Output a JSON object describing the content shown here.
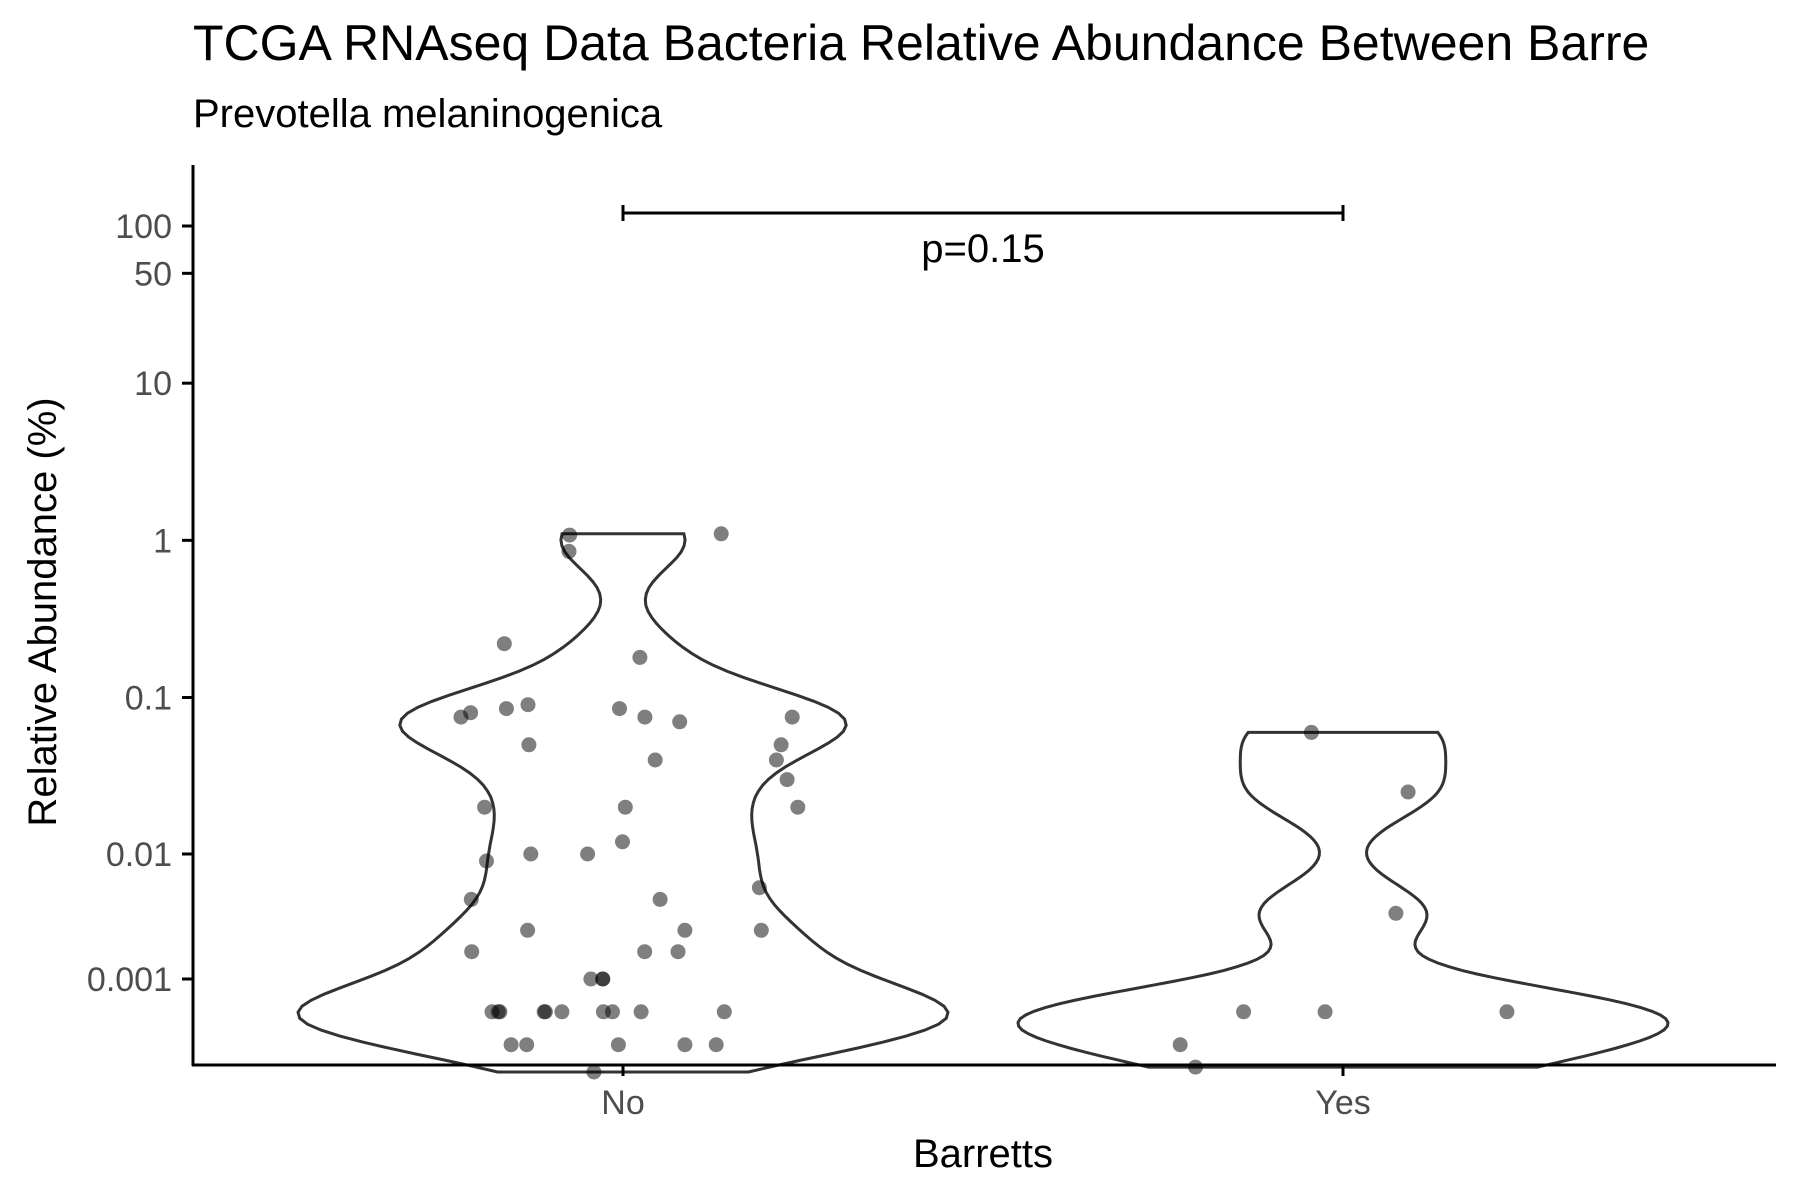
{
  "chart_data": {
    "type": "violin",
    "title": "TCGA RNAseq Data Bacteria Relative Abundance Between Barre",
    "subtitle": "Prevotella melaninogenica",
    "xlabel": "Barretts",
    "ylabel": "Relative Abundance (%)",
    "categories": [
      "No",
      "Yes"
    ],
    "y_scale": "pseudo-log",
    "y_ticks": [
      0.001,
      0.01,
      0.1,
      1,
      10,
      50,
      100
    ],
    "y_tick_labels": [
      "0.001",
      "0.01",
      "0.1",
      "1",
      "10",
      "50",
      "100"
    ],
    "ylim": [
      -0.003,
      130
    ],
    "significance": {
      "label": "p=0.15",
      "between": [
        "No",
        "Yes"
      ],
      "y": 115
    },
    "colors": {
      "points": "#000000",
      "violin_stroke": "#333333",
      "axis": "#000000",
      "tick_label": "#4d4d4d"
    },
    "point_opacity": 0.5,
    "series": [
      {
        "category": "No",
        "values": [
          0.085,
          0.075,
          0.02,
          0.01,
          0.001,
          0.02,
          0.005,
          0.006,
          0.04,
          0.001,
          0.0,
          0.0,
          0.07,
          0.08,
          0.012,
          0.003,
          -0.001,
          0.0,
          0.002,
          -0.001,
          0.085,
          0.075,
          0.05,
          0.075,
          0.009,
          0.001,
          0.03,
          -0.001,
          -0.002,
          0.0,
          0.003,
          0.0,
          0.22,
          0.02,
          0.0,
          -0.001,
          0.18,
          0.0,
          0.0,
          1.1,
          1.08,
          0.85,
          0.002,
          0.04,
          0.05,
          0.003,
          0.0,
          0.09,
          0.005,
          0.01,
          -0.001,
          0.002,
          0.0
        ]
      },
      {
        "category": "Yes",
        "values": [
          0.0,
          0.0,
          -0.0018,
          -0.001,
          0.06,
          0.025,
          0.004,
          0.0
        ]
      }
    ]
  }
}
